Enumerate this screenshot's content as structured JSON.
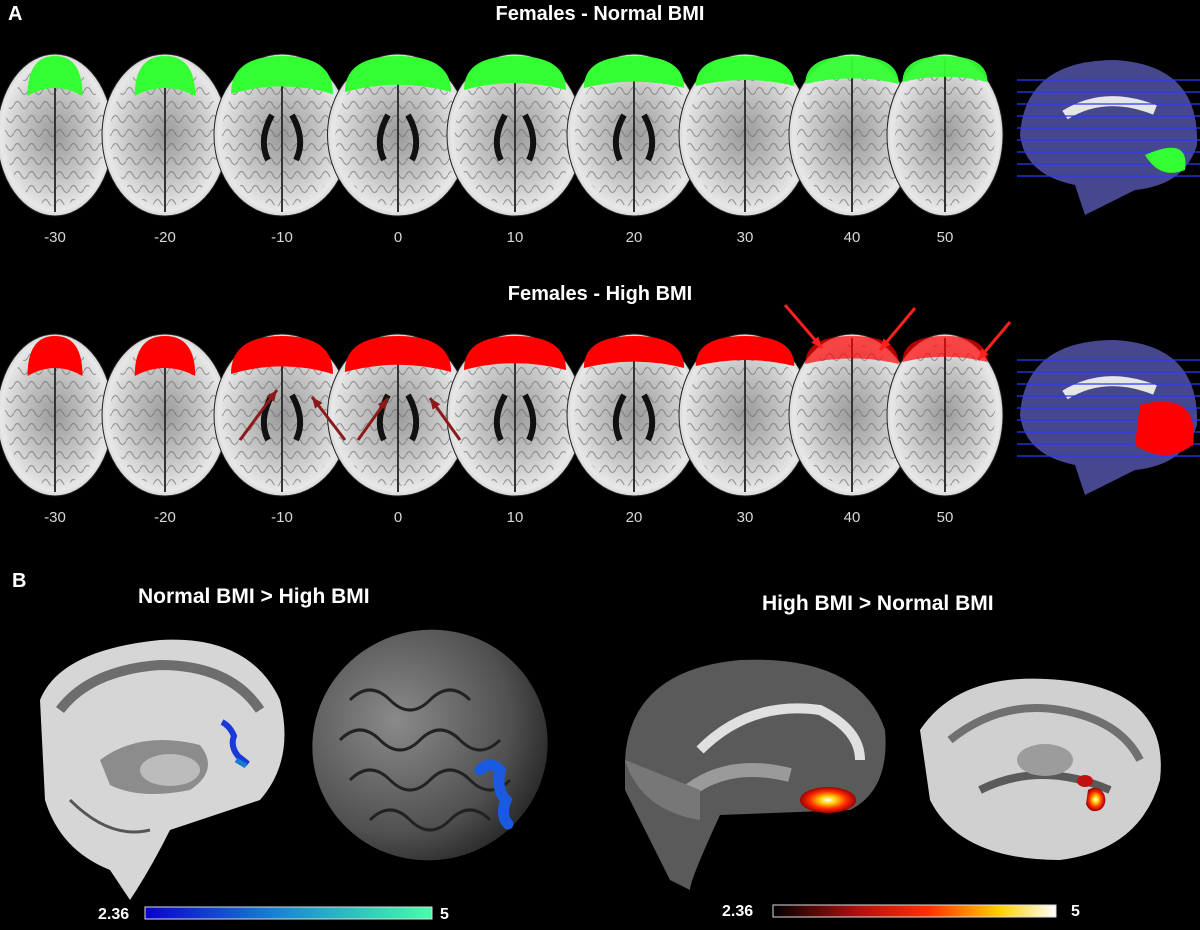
{
  "panel_a": {
    "letter": "A",
    "rows": [
      {
        "title": "Females - Normal BMI",
        "slice_labels": [
          "-30",
          "-20",
          "-10",
          "0",
          "10",
          "20",
          "30",
          "40",
          "50"
        ],
        "overlay_color": "#33ff33"
      },
      {
        "title": "Females - High BMI",
        "slice_labels": [
          "-30",
          "-20",
          "-10",
          "0",
          "10",
          "20",
          "30",
          "40",
          "50"
        ],
        "overlay_color": "#ff0000"
      }
    ]
  },
  "panel_b": {
    "letter": "B",
    "contrasts": [
      {
        "title": "Normal BMI > High BMI",
        "colorbar_min": "2.36",
        "colorbar_max": "5",
        "colors": [
          "#0a00d0",
          "#1a8fd0",
          "#44ffaa"
        ]
      },
      {
        "title": "High BMI > Normal BMI",
        "colorbar_min": "2.36",
        "colorbar_max": "5",
        "colors": [
          "#000000",
          "#b01010",
          "#ff3000",
          "#ffd000",
          "#ffffff"
        ]
      }
    ]
  },
  "icons": {
    "brain_slice": "axial-brain-slice-icon",
    "sagittal": "sagittal-brain-icon",
    "render": "3d-brain-render-icon",
    "arrow": "pointer-arrow-icon"
  }
}
